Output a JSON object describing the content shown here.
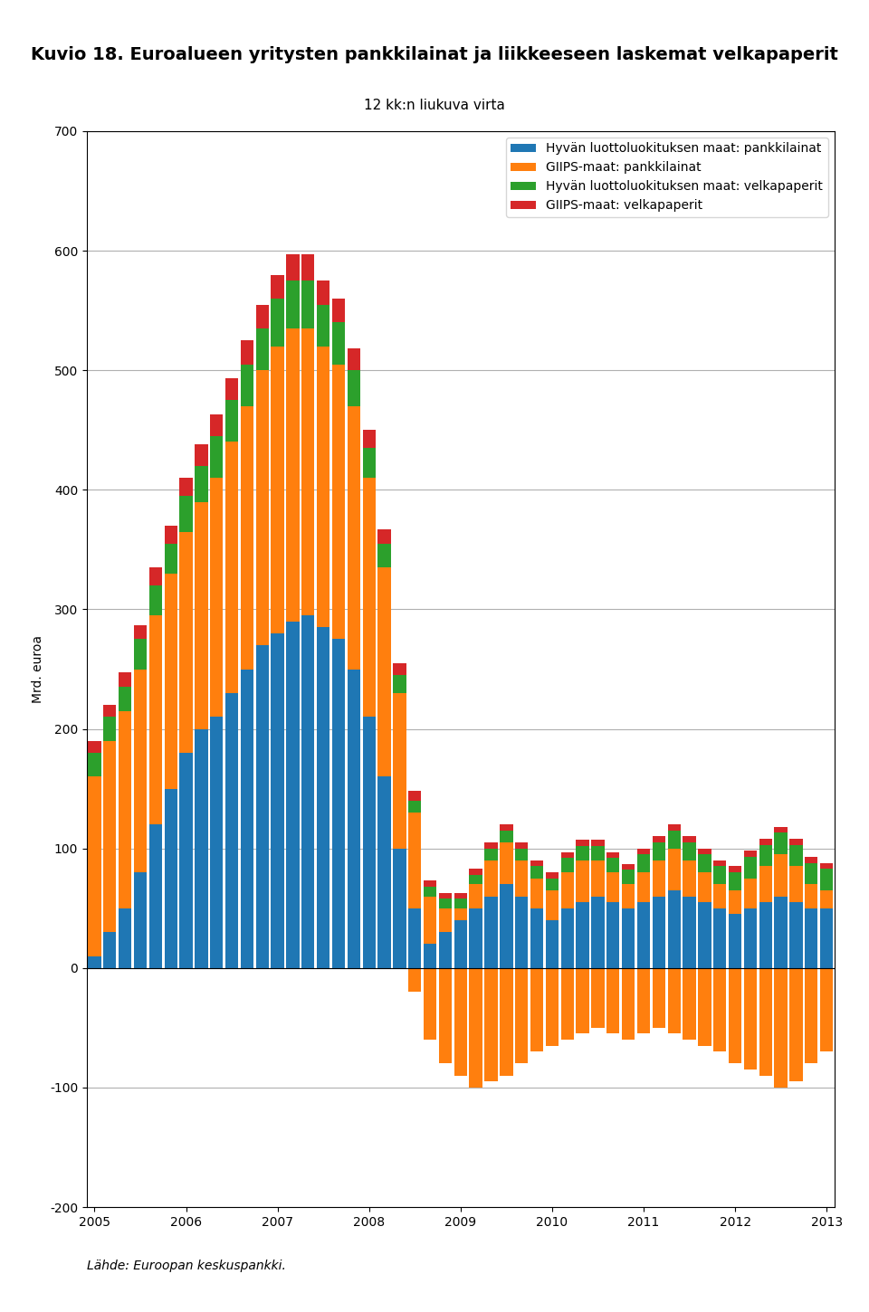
{
  "chart_data": {
    "type": "bar",
    "title": "Kuvio 18. Euroalueen yritysten pankkilainat ja liikkeeseen laskemat velkapaperit",
    "subtitle": "12 kk:n liukuva virta",
    "ylabel": "Mrd. euroa",
    "source": "Lähde: Euroopan keskuspankki.",
    "categories": [
      "2005",
      null,
      null,
      null,
      null,
      null,
      "2006",
      null,
      null,
      null,
      null,
      null,
      "2007",
      null,
      null,
      null,
      null,
      null,
      "2008",
      null,
      null,
      null,
      null,
      null,
      "2009",
      null,
      null,
      null,
      null,
      null,
      "2010",
      null,
      null,
      null,
      null,
      null,
      "2011",
      null,
      null,
      null,
      null,
      null,
      "2012",
      null,
      null,
      null,
      null,
      null,
      "2013"
    ],
    "series": [
      {
        "name": "Hyvän luottoluokituksen maat: pankkilainat",
        "color": "#1f77b4",
        "values": [
          10,
          30,
          50,
          80,
          120,
          150,
          180,
          200,
          210,
          230,
          250,
          270,
          280,
          290,
          295,
          285,
          275,
          250,
          210,
          160,
          100,
          50,
          20,
          30,
          40,
          50,
          60,
          70,
          60,
          50,
          40,
          50,
          55,
          60,
          55,
          50,
          55,
          60,
          65,
          60,
          55,
          50,
          45,
          50,
          55,
          60,
          55,
          50,
          50
        ]
      },
      {
        "name": "GIIPS-maat: pankkilainat",
        "color": "#ff7f0e",
        "values": [
          150,
          160,
          165,
          170,
          175,
          180,
          185,
          190,
          200,
          210,
          220,
          230,
          240,
          245,
          240,
          235,
          230,
          220,
          200,
          175,
          130,
          80,
          40,
          20,
          10,
          20,
          30,
          35,
          30,
          25,
          25,
          30,
          35,
          30,
          25,
          20,
          25,
          30,
          35,
          30,
          25,
          20,
          20,
          25,
          30,
          35,
          30,
          20,
          15
        ]
      },
      {
        "name": "Hyvän luottoluokituksen maat: velkapaperit",
        "color": "#2ca02c",
        "values": [
          20,
          20,
          20,
          25,
          25,
          25,
          30,
          30,
          35,
          35,
          35,
          35,
          40,
          40,
          40,
          35,
          35,
          30,
          25,
          20,
          15,
          10,
          8,
          8,
          8,
          8,
          10,
          10,
          10,
          10,
          10,
          12,
          12,
          12,
          12,
          12,
          15,
          15,
          15,
          15,
          15,
          15,
          15,
          18,
          18,
          18,
          18,
          18,
          18
        ]
      },
      {
        "name": "GIIPS-maat: velkapaperit",
        "color": "#d62728",
        "values": [
          10,
          10,
          12,
          12,
          15,
          15,
          15,
          18,
          18,
          18,
          20,
          20,
          20,
          22,
          22,
          20,
          20,
          18,
          15,
          12,
          10,
          8,
          5,
          5,
          5,
          5,
          5,
          5,
          5,
          5,
          5,
          5,
          5,
          5,
          5,
          5,
          5,
          5,
          5,
          5,
          5,
          5,
          5,
          5,
          5,
          5,
          5,
          5,
          5
        ]
      },
      {
        "name": "GIIPS-maat: pankkilainat",
        "color": "#ff7f0e",
        "values": [
          0,
          0,
          0,
          0,
          0,
          0,
          0,
          0,
          0,
          0,
          0,
          0,
          0,
          0,
          0,
          0,
          0,
          0,
          0,
          0,
          0,
          -20,
          -60,
          -80,
          -90,
          -100,
          -95,
          -90,
          -80,
          -70,
          -65,
          -60,
          -55,
          -50,
          -55,
          -60,
          -55,
          -50,
          -55,
          -60,
          -65,
          -70,
          -80,
          -85,
          -90,
          -100,
          -95,
          -80,
          -70
        ]
      }
    ],
    "stacked": true,
    "ylim": [
      -200,
      700
    ],
    "yticks": [
      -200,
      -100,
      0,
      100,
      200,
      300,
      400,
      500,
      600,
      700
    ],
    "grid": true,
    "legend": "upper right"
  }
}
